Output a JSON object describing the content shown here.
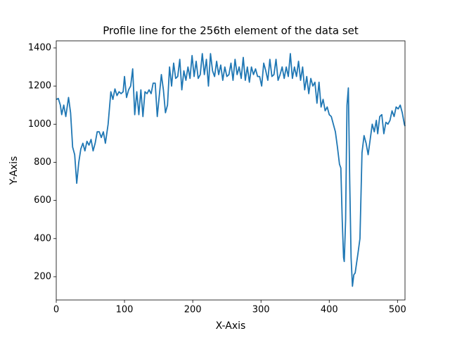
{
  "chart_data": {
    "type": "line",
    "title": "Profile line for the 256th element of the data set",
    "x_label": "X-Axis",
    "y_label": "Y-Axis",
    "color": "#1f77b4",
    "xlim": [
      0,
      511
    ],
    "ylim": [
      78,
      1437
    ],
    "xticks": [
      0,
      100,
      200,
      300,
      400,
      500
    ],
    "yticks": [
      200,
      400,
      600,
      800,
      1000,
      1200,
      1400
    ],
    "x": [
      0,
      3,
      6,
      8,
      11,
      14,
      18,
      21,
      24,
      27,
      30,
      33,
      36,
      39,
      42,
      45,
      48,
      51,
      54,
      57,
      60,
      63,
      66,
      69,
      72,
      76,
      80,
      83,
      86,
      89,
      92,
      95,
      98,
      100,
      103,
      106,
      109,
      112,
      115,
      118,
      121,
      124,
      127,
      130,
      133,
      136,
      139,
      142,
      145,
      148,
      151,
      154,
      157,
      160,
      163,
      166,
      169,
      172,
      175,
      178,
      181,
      184,
      187,
      190,
      193,
      196,
      199,
      202,
      205,
      208,
      211,
      214,
      217,
      220,
      223,
      226,
      229,
      232,
      235,
      238,
      241,
      244,
      247,
      250,
      253,
      256,
      259,
      262,
      265,
      268,
      271,
      274,
      277,
      280,
      283,
      286,
      289,
      292,
      295,
      298,
      301,
      304,
      307,
      310,
      313,
      316,
      319,
      322,
      325,
      328,
      331,
      334,
      337,
      340,
      343,
      346,
      349,
      352,
      355,
      358,
      361,
      364,
      367,
      370,
      373,
      376,
      379,
      382,
      385,
      388,
      391,
      394,
      397,
      400,
      403,
      406,
      409,
      412,
      415,
      417,
      419,
      421,
      422,
      424,
      426,
      428,
      430,
      432,
      434,
      436,
      438,
      440,
      442,
      445,
      448,
      451,
      454,
      457,
      460,
      463,
      466,
      469,
      471,
      474,
      477,
      480,
      483,
      486,
      489,
      492,
      495,
      498,
      501,
      504,
      507,
      510,
      511
    ],
    "values": [
      1130,
      1135,
      1100,
      1050,
      1100,
      1040,
      1140,
      1060,
      880,
      840,
      690,
      800,
      870,
      900,
      860,
      910,
      890,
      920,
      860,
      900,
      960,
      960,
      930,
      960,
      900,
      1000,
      1170,
      1130,
      1185,
      1150,
      1170,
      1160,
      1170,
      1250,
      1140,
      1180,
      1200,
      1290,
      1050,
      1170,
      1050,
      1180,
      1040,
      1170,
      1160,
      1180,
      1160,
      1215,
      1215,
      1040,
      1150,
      1260,
      1180,
      1060,
      1100,
      1300,
      1200,
      1320,
      1240,
      1250,
      1340,
      1180,
      1280,
      1230,
      1300,
      1240,
      1360,
      1250,
      1330,
      1240,
      1260,
      1370,
      1260,
      1340,
      1200,
      1370,
      1280,
      1250,
      1330,
      1260,
      1310,
      1230,
      1300,
      1250,
      1260,
      1320,
      1230,
      1340,
      1260,
      1300,
      1240,
      1350,
      1230,
      1300,
      1220,
      1300,
      1260,
      1290,
      1250,
      1250,
      1200,
      1320,
      1280,
      1230,
      1340,
      1250,
      1260,
      1340,
      1230,
      1260,
      1300,
      1240,
      1300,
      1250,
      1370,
      1240,
      1300,
      1250,
      1330,
      1230,
      1300,
      1180,
      1250,
      1160,
      1240,
      1200,
      1220,
      1110,
      1220,
      1090,
      1130,
      1070,
      1090,
      1050,
      1040,
      1000,
      960,
      880,
      790,
      770,
      500,
      300,
      280,
      500,
      1100,
      1190,
      700,
      300,
      150,
      210,
      220,
      270,
      320,
      400,
      850,
      940,
      900,
      840,
      920,
      1000,
      960,
      1020,
      950,
      1040,
      1050,
      950,
      1010,
      1000,
      1020,
      1070,
      1040,
      1090,
      1080,
      1100,
      1060,
      1000,
      990
    ]
  }
}
